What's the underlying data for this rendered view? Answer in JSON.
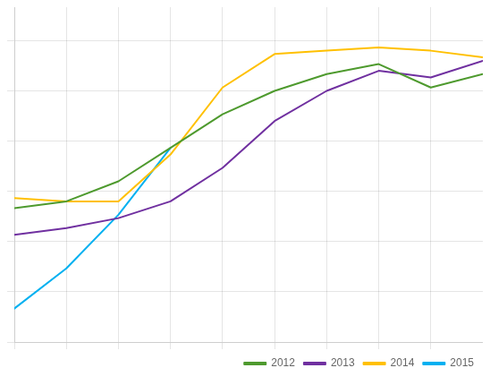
{
  "chart_data": {
    "type": "line",
    "x": [
      1,
      2,
      3,
      4,
      5,
      6,
      7,
      8,
      9,
      10
    ],
    "series": [
      {
        "name": "2012",
        "color": "#4e9a2e",
        "values": [
          60,
          62,
          68,
          78,
          88,
          95,
          100,
          103,
          96,
          100
        ]
      },
      {
        "name": "2013",
        "color": "#7030a0",
        "values": [
          52,
          54,
          57,
          62,
          72,
          86,
          95,
          101,
          99,
          104
        ]
      },
      {
        "name": "2014",
        "color": "#ffc000",
        "values": [
          63,
          62,
          62,
          76,
          96,
          106,
          107,
          108,
          107,
          105
        ]
      },
      {
        "name": "2015",
        "color": "#00b0f0",
        "values": [
          30,
          42,
          58,
          78,
          null,
          null,
          null,
          null,
          null,
          null
        ]
      }
    ],
    "xlim": [
      1,
      10
    ],
    "xticks": [
      1,
      2,
      3,
      4,
      5,
      6,
      7,
      8,
      9,
      10
    ],
    "ylim": [
      20,
      120
    ],
    "yticks": [
      20,
      35,
      50,
      65,
      80,
      95,
      110
    ],
    "grid": true,
    "legend": "lower right",
    "tick_labels": false
  }
}
